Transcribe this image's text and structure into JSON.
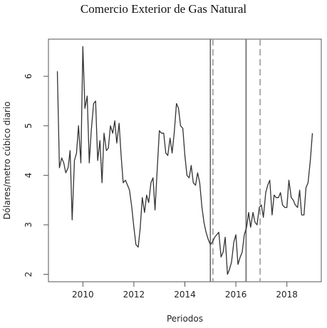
{
  "chart_data": {
    "type": "line",
    "title": "Comercio Exterior de Gas Natural",
    "xlabel": "Periodos",
    "ylabel": "Dólares/metro cúbico diario",
    "xlim": [
      2008.65,
      2019.35
    ],
    "ylim": [
      1.85,
      6.75
    ],
    "x_ticks": [
      2010,
      2012,
      2014,
      2016,
      2018
    ],
    "x_tick_labels": [
      "2010",
      "2012",
      "2014",
      "2016",
      "2018"
    ],
    "y_ticks": [
      2,
      3,
      4,
      5,
      6
    ],
    "y_tick_labels": [
      "2",
      "3",
      "4",
      "5",
      "6"
    ],
    "vlines": [
      {
        "x": 2015.0,
        "style": "solid",
        "color": "#666666"
      },
      {
        "x": 2015.1,
        "style": "dashed",
        "color": "#9a9a9a"
      },
      {
        "x": 2016.4,
        "style": "solid",
        "color": "#666666"
      },
      {
        "x": 2016.95,
        "style": "dashed",
        "color": "#9a9a9a"
      }
    ],
    "series": [
      {
        "color": "#333333",
        "x": [
          2009.0,
          2009.08,
          2009.17,
          2009.25,
          2009.33,
          2009.42,
          2009.5,
          2009.58,
          2009.67,
          2009.75,
          2009.83,
          2009.92,
          2010.0,
          2010.08,
          2010.17,
          2010.25,
          2010.33,
          2010.42,
          2010.5,
          2010.58,
          2010.67,
          2010.75,
          2010.83,
          2010.92,
          2011.0,
          2011.08,
          2011.17,
          2011.25,
          2011.33,
          2011.42,
          2011.5,
          2011.58,
          2011.67,
          2011.75,
          2011.83,
          2011.92,
          2012.0,
          2012.08,
          2012.17,
          2012.25,
          2012.33,
          2012.42,
          2012.5,
          2012.58,
          2012.67,
          2012.75,
          2012.83,
          2012.92,
          2013.0,
          2013.08,
          2013.17,
          2013.25,
          2013.33,
          2013.42,
          2013.5,
          2013.58,
          2013.67,
          2013.75,
          2013.83,
          2013.92,
          2014.0,
          2014.08,
          2014.17,
          2014.25,
          2014.33,
          2014.42,
          2014.5,
          2014.58,
          2014.67,
          2014.75,
          2014.83,
          2014.92,
          2015.0,
          2015.08,
          2015.17,
          2015.25,
          2015.33,
          2015.42,
          2015.5,
          2015.58,
          2015.67,
          2015.75,
          2015.83,
          2015.92,
          2016.0,
          2016.08,
          2016.17,
          2016.25,
          2016.33,
          2016.42,
          2016.5,
          2016.58,
          2016.67,
          2016.75,
          2016.83,
          2016.92,
          2017.0,
          2017.08,
          2017.17,
          2017.25,
          2017.33,
          2017.42,
          2017.5,
          2017.58,
          2017.67,
          2017.75,
          2017.83,
          2017.92,
          2018.0,
          2018.08,
          2018.17,
          2018.25,
          2018.33,
          2018.42,
          2018.5,
          2018.58,
          2018.67,
          2018.75,
          2018.83,
          2018.92,
          2019.0
        ],
        "y": [
          6.1,
          4.15,
          4.35,
          4.25,
          4.05,
          4.15,
          4.5,
          3.1,
          4.3,
          4.45,
          5.0,
          4.25,
          6.6,
          5.35,
          5.6,
          4.25,
          4.9,
          5.45,
          5.5,
          4.3,
          4.7,
          3.85,
          4.85,
          4.5,
          4.55,
          5.0,
          4.85,
          5.1,
          4.65,
          5.05,
          4.4,
          3.85,
          3.9,
          3.8,
          3.7,
          3.35,
          2.95,
          2.6,
          2.55,
          2.95,
          3.55,
          3.25,
          3.6,
          3.45,
          3.85,
          3.95,
          3.3,
          4.15,
          4.9,
          4.85,
          4.85,
          4.45,
          4.4,
          4.75,
          4.45,
          4.85,
          5.45,
          5.35,
          5.0,
          4.95,
          4.4,
          4.0,
          3.95,
          4.2,
          3.85,
          3.8,
          4.05,
          3.85,
          3.35,
          3.05,
          2.85,
          2.7,
          2.6,
          2.65,
          2.75,
          2.8,
          2.85,
          2.35,
          2.45,
          2.75,
          2.0,
          2.1,
          2.25,
          2.65,
          2.8,
          2.2,
          2.35,
          2.45,
          2.8,
          2.95,
          3.25,
          2.95,
          3.25,
          3.05,
          3.0,
          3.35,
          3.4,
          3.15,
          3.65,
          3.8,
          3.9,
          3.2,
          3.6,
          3.55,
          3.55,
          3.65,
          3.4,
          3.35,
          3.35,
          3.9,
          3.55,
          3.5,
          3.4,
          3.35,
          3.7,
          3.2,
          3.2,
          3.75,
          3.85,
          4.3,
          4.85
        ]
      }
    ]
  }
}
